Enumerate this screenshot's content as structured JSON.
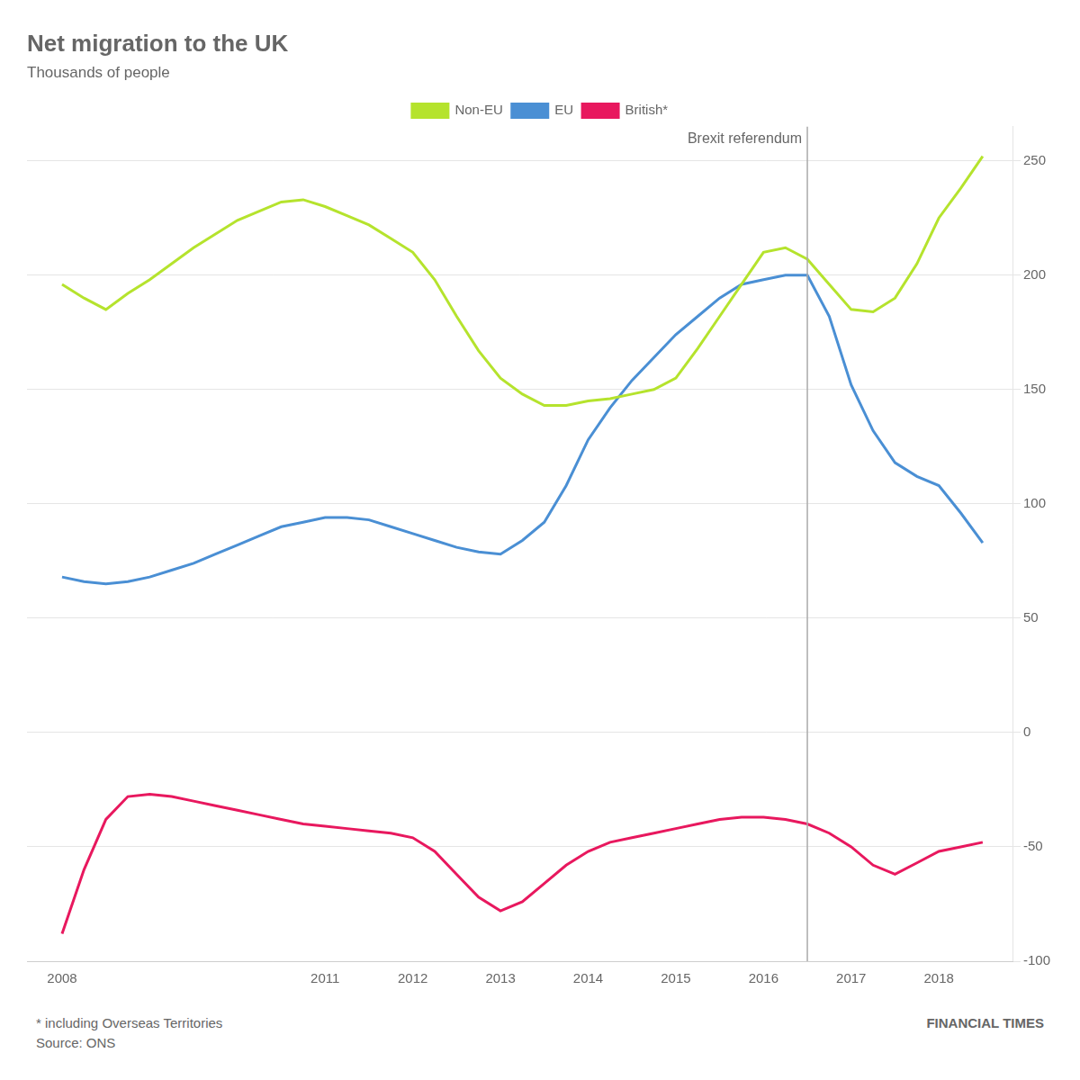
{
  "chart_data": {
    "type": "line",
    "title": "Net migration to the UK",
    "subtitle": "Thousands of people",
    "x": [
      2008.0,
      2008.25,
      2008.5,
      2008.75,
      2009.0,
      2009.25,
      2009.5,
      2009.75,
      2010.0,
      2010.25,
      2010.5,
      2010.75,
      2011.0,
      2011.25,
      2011.5,
      2011.75,
      2012.0,
      2012.25,
      2012.5,
      2012.75,
      2013.0,
      2013.25,
      2013.5,
      2013.75,
      2014.0,
      2014.25,
      2014.5,
      2014.75,
      2015.0,
      2015.25,
      2015.5,
      2015.75,
      2016.0,
      2016.25,
      2016.5,
      2016.75,
      2017.0,
      2017.25,
      2017.5,
      2017.75,
      2018.0,
      2018.25,
      2018.5
    ],
    "series": [
      {
        "name": "Non-EU",
        "color": "#b5e32d",
        "values": [
          196,
          190,
          185,
          192,
          198,
          205,
          212,
          218,
          224,
          228,
          232,
          233,
          230,
          226,
          222,
          216,
          210,
          198,
          182,
          167,
          155,
          148,
          143,
          143,
          145,
          146,
          148,
          150,
          155,
          168,
          182,
          196,
          210,
          212,
          207,
          196,
          185,
          184,
          190,
          205,
          225,
          238,
          252
        ]
      },
      {
        "name": "EU",
        "color": "#4a8fd4",
        "values": [
          68,
          66,
          65,
          66,
          68,
          71,
          74,
          78,
          82,
          86,
          90,
          92,
          94,
          94,
          93,
          90,
          87,
          84,
          81,
          79,
          78,
          84,
          92,
          108,
          128,
          142,
          154,
          164,
          174,
          182,
          190,
          196,
          198,
          200,
          200,
          182,
          152,
          132,
          118,
          112,
          108,
          96,
          83
        ]
      },
      {
        "name": "British*",
        "color": "#e8185e",
        "values": [
          -88,
          -60,
          -38,
          -28,
          -27,
          -28,
          -30,
          -32,
          -34,
          -36,
          -38,
          -40,
          -41,
          -42,
          -43,
          -44,
          -46,
          -52,
          -62,
          -72,
          -78,
          -74,
          -66,
          -58,
          -52,
          -48,
          -46,
          -44,
          -42,
          -40,
          -38,
          -37,
          -37,
          -38,
          -40,
          -44,
          -50,
          -58,
          -62,
          -57,
          -52,
          -50,
          -48
        ]
      }
    ],
    "xlim": [
      2007.6,
      2018.85
    ],
    "xticks": [
      2008,
      2011,
      2012,
      2013,
      2014,
      2015,
      2016,
      2017,
      2018
    ],
    "ylim": [
      -100,
      265
    ],
    "yticks": [
      -100,
      -50,
      0,
      50,
      100,
      150,
      200,
      250
    ],
    "grid": true,
    "legend": "top",
    "annotations": [
      {
        "text": "Brexit referendum",
        "x": 2016.5,
        "color": "#aaaaaa"
      }
    ],
    "footer": [
      "* including Overseas Territories",
      "Source: ONS",
      "FINANCIAL TIMES"
    ]
  }
}
